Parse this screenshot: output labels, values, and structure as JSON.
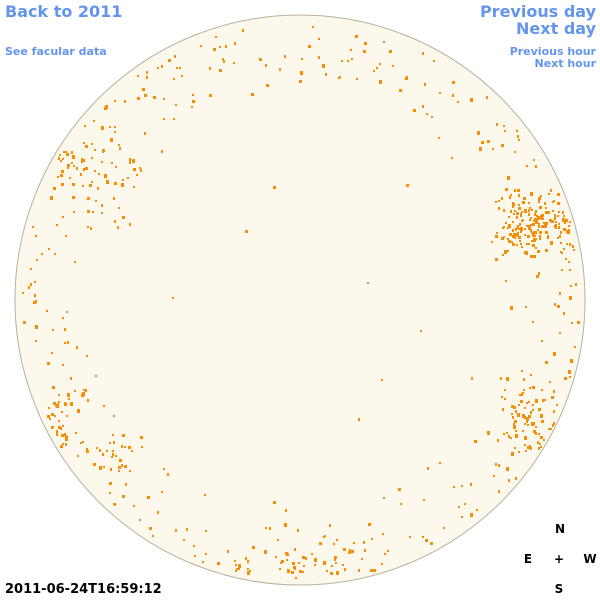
{
  "nav": {
    "back": "Back to 2011",
    "facular": "See facular data",
    "previous_day": "Previous day",
    "next_day": "Next day",
    "previous_hour": "Previous hour",
    "next_hour": "Next hour"
  },
  "timestamp": "2011-06-24T16:59:12",
  "compass": {
    "north": "N",
    "east": "E",
    "center": "+",
    "west": "W",
    "south": "S"
  }
}
